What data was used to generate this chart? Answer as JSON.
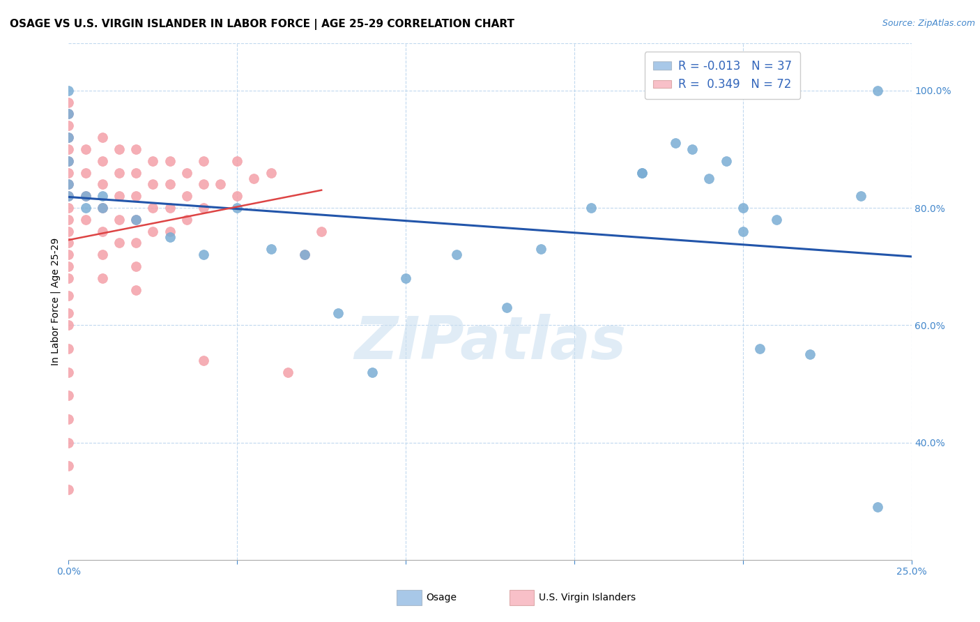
{
  "title": "OSAGE VS U.S. VIRGIN ISLANDER IN LABOR FORCE | AGE 25-29 CORRELATION CHART",
  "source_text": "Source: ZipAtlas.com",
  "ylabel": "In Labor Force | Age 25-29",
  "xlim": [
    0.0,
    0.25
  ],
  "ylim": [
    0.2,
    1.08
  ],
  "xticks": [
    0.0,
    0.05,
    0.1,
    0.15,
    0.2,
    0.25
  ],
  "yticks": [
    0.4,
    0.6,
    0.8,
    1.0
  ],
  "ytick_labels": [
    "40.0%",
    "60.0%",
    "80.0%",
    "100.0%"
  ],
  "xtick_labels": [
    "0.0%",
    "",
    "",
    "",
    "",
    "25.0%"
  ],
  "legend_blue_label": "Osage",
  "legend_pink_label": "U.S. Virgin Islanders",
  "R_blue": -0.013,
  "N_blue": 37,
  "R_pink": 0.349,
  "N_pink": 72,
  "blue_color": "#7aadd4",
  "pink_color": "#f4a0a8",
  "blue_fill_color": "#a8c8e8",
  "pink_fill_color": "#f8c0c8",
  "blue_line_color": "#2255aa",
  "pink_line_color": "#dd4444",
  "watermark": "ZIPatlas",
  "blue_x": [
    0.0,
    0.0,
    0.0,
    0.0,
    0.0,
    0.0,
    0.005,
    0.005,
    0.01,
    0.01,
    0.02,
    0.03,
    0.04,
    0.05,
    0.06,
    0.07,
    0.08,
    0.09,
    0.1,
    0.115,
    0.13,
    0.14,
    0.155,
    0.17,
    0.185,
    0.19,
    0.2,
    0.205,
    0.21,
    0.22,
    0.235,
    0.24,
    0.195,
    0.2,
    0.18,
    0.17,
    0.24
  ],
  "blue_y": [
    0.82,
    0.84,
    0.88,
    0.92,
    0.96,
    1.0,
    0.8,
    0.82,
    0.8,
    0.82,
    0.78,
    0.75,
    0.72,
    0.8,
    0.73,
    0.72,
    0.62,
    0.52,
    0.68,
    0.72,
    0.63,
    0.73,
    0.8,
    0.86,
    0.9,
    0.85,
    0.76,
    0.56,
    0.78,
    0.55,
    0.82,
    1.0,
    0.88,
    0.8,
    0.91,
    0.86,
    0.29
  ],
  "pink_x": [
    0.0,
    0.0,
    0.0,
    0.0,
    0.0,
    0.0,
    0.0,
    0.0,
    0.0,
    0.0,
    0.0,
    0.0,
    0.0,
    0.0,
    0.0,
    0.0,
    0.0,
    0.0,
    0.0,
    0.0,
    0.0,
    0.0,
    0.0,
    0.0,
    0.0,
    0.0,
    0.005,
    0.005,
    0.005,
    0.005,
    0.01,
    0.01,
    0.01,
    0.01,
    0.01,
    0.01,
    0.01,
    0.015,
    0.015,
    0.015,
    0.015,
    0.015,
    0.02,
    0.02,
    0.02,
    0.02,
    0.02,
    0.02,
    0.02,
    0.025,
    0.025,
    0.025,
    0.025,
    0.03,
    0.03,
    0.03,
    0.03,
    0.035,
    0.035,
    0.035,
    0.04,
    0.04,
    0.04,
    0.04,
    0.045,
    0.05,
    0.05,
    0.055,
    0.06,
    0.065,
    0.07,
    0.075
  ],
  "pink_y": [
    0.98,
    0.96,
    0.94,
    0.92,
    0.9,
    0.88,
    0.86,
    0.84,
    0.82,
    0.8,
    0.78,
    0.76,
    0.74,
    0.72,
    0.7,
    0.68,
    0.65,
    0.62,
    0.6,
    0.56,
    0.52,
    0.48,
    0.44,
    0.4,
    0.36,
    0.32,
    0.9,
    0.86,
    0.82,
    0.78,
    0.92,
    0.88,
    0.84,
    0.8,
    0.76,
    0.72,
    0.68,
    0.9,
    0.86,
    0.82,
    0.78,
    0.74,
    0.9,
    0.86,
    0.82,
    0.78,
    0.74,
    0.7,
    0.66,
    0.88,
    0.84,
    0.8,
    0.76,
    0.88,
    0.84,
    0.8,
    0.76,
    0.86,
    0.82,
    0.78,
    0.88,
    0.84,
    0.8,
    0.54,
    0.84,
    0.88,
    0.82,
    0.85,
    0.86,
    0.52,
    0.72,
    0.76
  ],
  "title_fontsize": 11,
  "tick_fontsize": 10,
  "legend_fontsize": 12
}
